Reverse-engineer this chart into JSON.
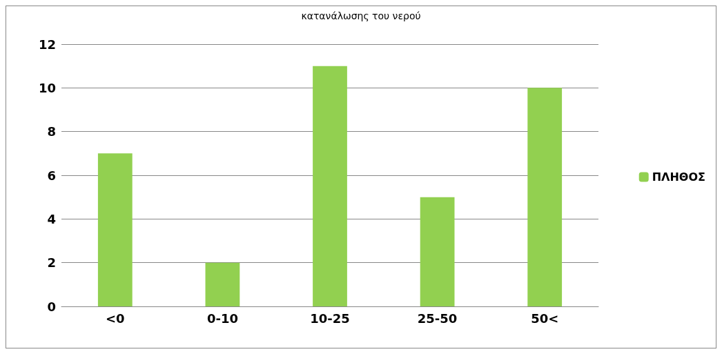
{
  "chart_data": {
    "type": "bar",
    "title": "κατανάλωσης του νερού",
    "categories": [
      "<0",
      "0-10",
      "10-25",
      "25-50",
      "50<"
    ],
    "series": [
      {
        "name": "ΠΛΗΘΟΣ",
        "color": "#92d050",
        "values": [
          7,
          2,
          11,
          5,
          10
        ]
      }
    ],
    "ylim": [
      0,
      12
    ],
    "yticks": [
      0,
      2,
      4,
      6,
      8,
      10,
      12
    ],
    "grid": "y",
    "legend": "right"
  }
}
